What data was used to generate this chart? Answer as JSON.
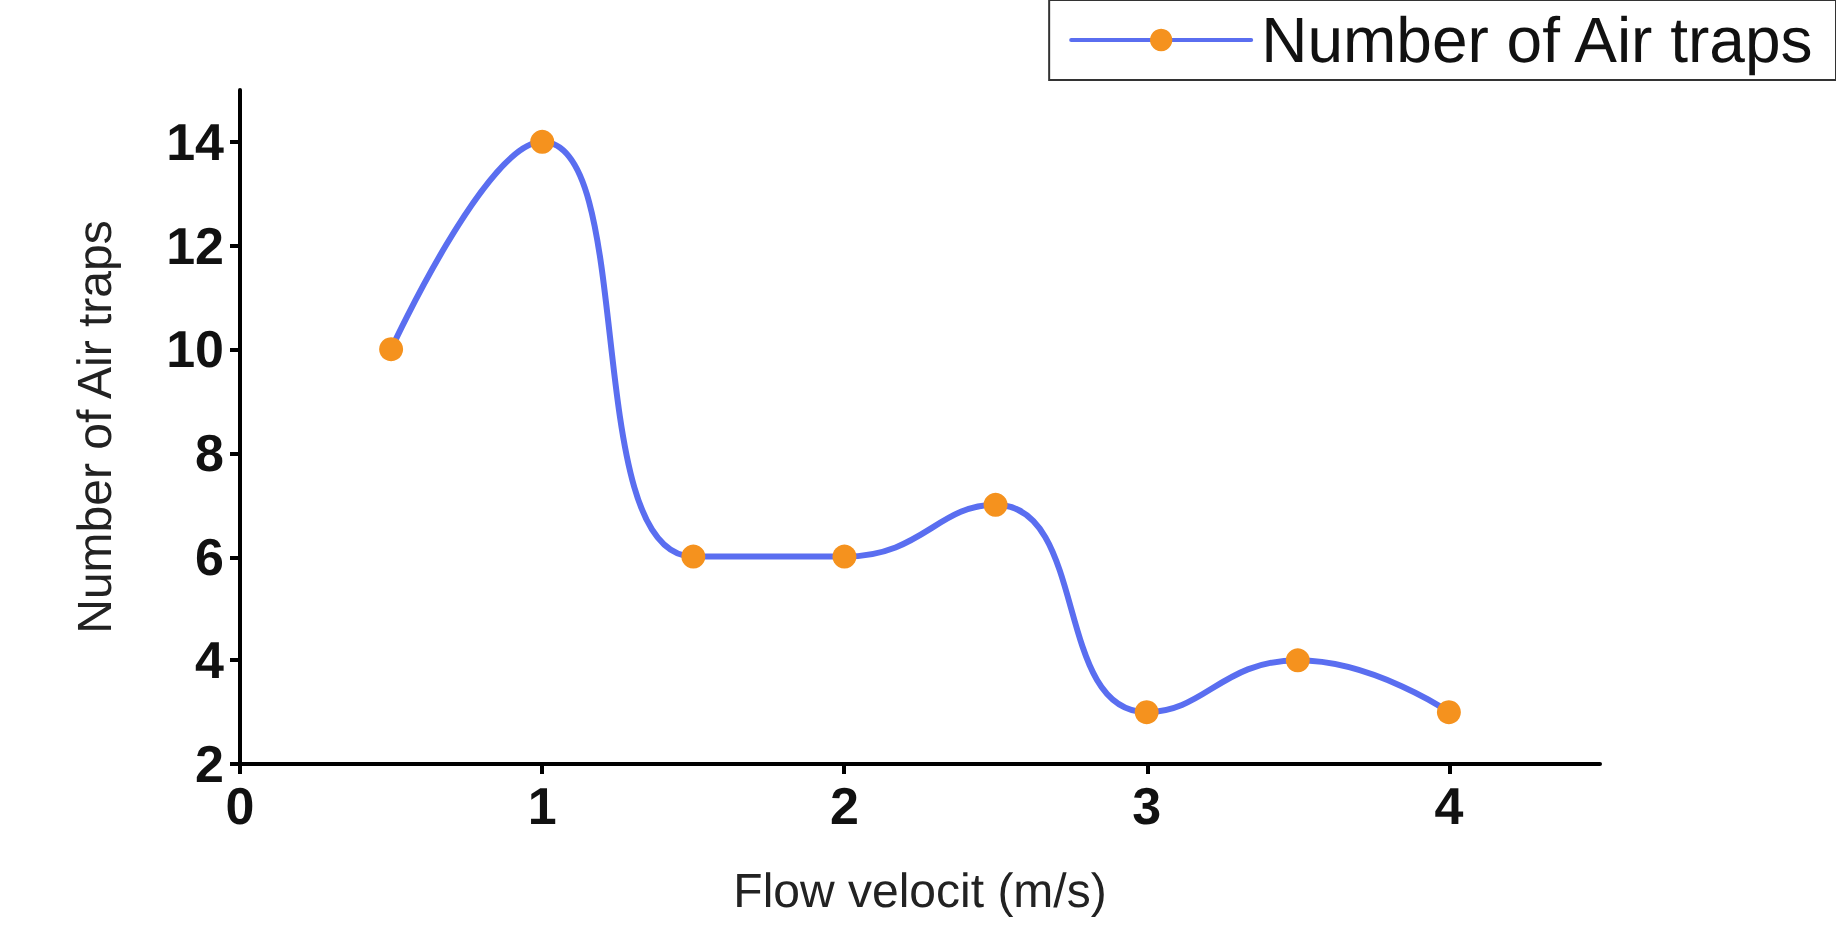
{
  "chart_data": {
    "type": "line",
    "xlabel": "Flow velocit (m/s)",
    "ylabel": "Number of Air traps",
    "x": [
      0.5,
      1,
      1.5,
      2,
      2.5,
      3,
      3.5,
      4
    ],
    "series": [
      {
        "name": "Number of Air traps",
        "color": "#5a6ef0",
        "colors": [
          "#f5921e",
          "#f5921e",
          "#f5921e",
          "#f5921e",
          "#f5921e",
          "#f5921e",
          "#f5921e",
          "#f5921e"
        ],
        "values": [
          10,
          14,
          6,
          6,
          7,
          3,
          4,
          3
        ]
      }
    ],
    "xlim": [
      0,
      4.5
    ],
    "xticks": [
      0,
      1,
      2,
      3,
      4
    ],
    "ylim": [
      2,
      15
    ],
    "yticks": [
      2,
      4,
      6,
      8,
      10,
      12,
      14
    ],
    "grid": false,
    "legend": "top right",
    "marker": "circle",
    "line_style": "solid"
  }
}
